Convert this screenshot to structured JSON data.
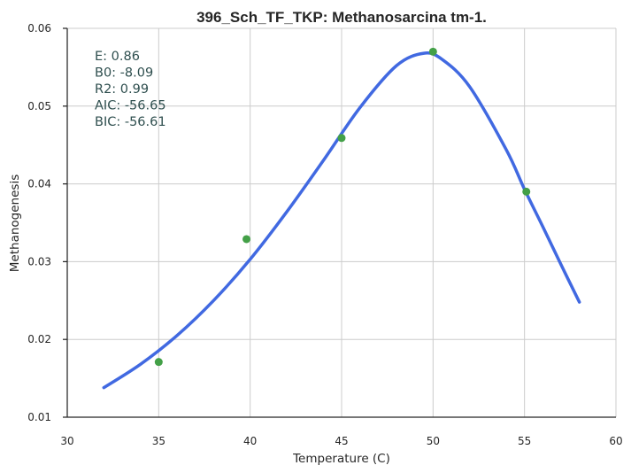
{
  "chart_data": {
    "type": "scatter",
    "title": "396_Sch_TF_TKP: Methanosarcina tm-1.",
    "xlabel": "Temperature (C)",
    "ylabel": "Methanogenesis",
    "xlim": [
      30,
      60
    ],
    "ylim": [
      0.01,
      0.06
    ],
    "x_ticks": [
      "30",
      "35",
      "40",
      "45",
      "50",
      "55",
      "60"
    ],
    "y_ticks": [
      "0.01",
      "0.02",
      "0.03",
      "0.04",
      "0.05",
      "0.06"
    ],
    "grid": true,
    "series": [
      {
        "type": "scatter",
        "color": "#43a047",
        "points": [
          {
            "x": 35.0,
            "y": 0.0171
          },
          {
            "x": 39.8,
            "y": 0.0329
          },
          {
            "x": 45.0,
            "y": 0.0459
          },
          {
            "x": 50.0,
            "y": 0.057
          },
          {
            "x": 55.1,
            "y": 0.039
          }
        ]
      },
      {
        "type": "line",
        "color": "#4169e1",
        "points": [
          {
            "x": 32.0,
            "y": 0.0138
          },
          {
            "x": 34.0,
            "y": 0.0168
          },
          {
            "x": 36.0,
            "y": 0.0205
          },
          {
            "x": 38.0,
            "y": 0.025
          },
          {
            "x": 40.0,
            "y": 0.0303
          },
          {
            "x": 42.0,
            "y": 0.0364
          },
          {
            "x": 44.0,
            "y": 0.043
          },
          {
            "x": 46.0,
            "y": 0.0498
          },
          {
            "x": 48.0,
            "y": 0.0552
          },
          {
            "x": 49.5,
            "y": 0.0568
          },
          {
            "x": 50.5,
            "y": 0.056
          },
          {
            "x": 52.0,
            "y": 0.0525
          },
          {
            "x": 54.0,
            "y": 0.0444
          },
          {
            "x": 55.0,
            "y": 0.0393
          },
          {
            "x": 56.0,
            "y": 0.0345
          },
          {
            "x": 57.0,
            "y": 0.0296
          },
          {
            "x": 58.0,
            "y": 0.0248
          }
        ]
      }
    ],
    "annotations": [
      "E:  0.86",
      "B0:  -8.09",
      "R2:  0.99",
      "AIC: -56.65",
      "BIC: -56.61"
    ]
  }
}
